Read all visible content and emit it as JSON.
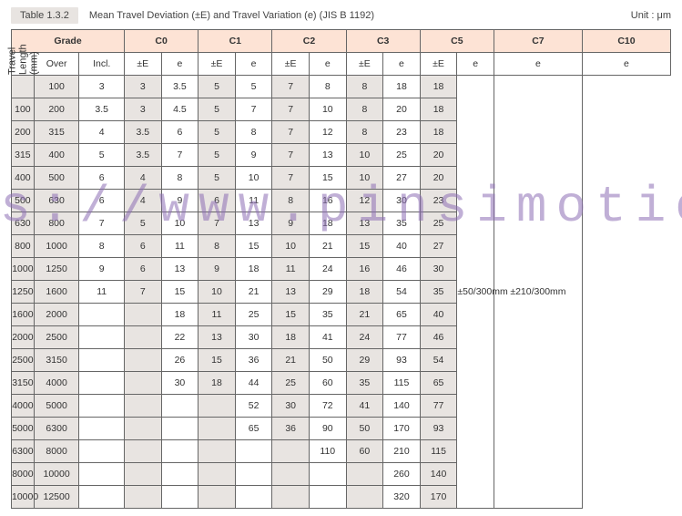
{
  "caption": {
    "tag": "Table 1.3.2",
    "title": "Mean Travel Deviation (±E) and Travel Variation (e) (JIS B 1192)",
    "unit": "Unit : μm"
  },
  "header": {
    "grade": "Grade",
    "c0": "C0",
    "c1": "C1",
    "c2": "C2",
    "c3": "C3",
    "c5": "C5",
    "c7": "C7",
    "c10": "C10",
    "over": "Over",
    "incl": "Incl.",
    "pe": "±E",
    "e": "e",
    "side": "Travel Length (mm)"
  },
  "c7val": "±50/300mm",
  "c10val": "±210/300mm",
  "rows": [
    {
      "over": "",
      "incl": "100",
      "c0e": "3",
      "c0v": "3",
      "c1e": "3.5",
      "c1v": "5",
      "c2e": "5",
      "c2v": "7",
      "c3e": "8",
      "c3v": "8",
      "c5e": "18",
      "c5v": "18"
    },
    {
      "over": "100",
      "incl": "200",
      "c0e": "3.5",
      "c0v": "3",
      "c1e": "4.5",
      "c1v": "5",
      "c2e": "7",
      "c2v": "7",
      "c3e": "10",
      "c3v": "8",
      "c5e": "20",
      "c5v": "18"
    },
    {
      "over": "200",
      "incl": "315",
      "c0e": "4",
      "c0v": "3.5",
      "c1e": "6",
      "c1v": "5",
      "c2e": "8",
      "c2v": "7",
      "c3e": "12",
      "c3v": "8",
      "c5e": "23",
      "c5v": "18"
    },
    {
      "over": "315",
      "incl": "400",
      "c0e": "5",
      "c0v": "3.5",
      "c1e": "7",
      "c1v": "5",
      "c2e": "9",
      "c2v": "7",
      "c3e": "13",
      "c3v": "10",
      "c5e": "25",
      "c5v": "20"
    },
    {
      "over": "400",
      "incl": "500",
      "c0e": "6",
      "c0v": "4",
      "c1e": "8",
      "c1v": "5",
      "c2e": "10",
      "c2v": "7",
      "c3e": "15",
      "c3v": "10",
      "c5e": "27",
      "c5v": "20"
    },
    {
      "over": "500",
      "incl": "630",
      "c0e": "6",
      "c0v": "4",
      "c1e": "9",
      "c1v": "6",
      "c2e": "11",
      "c2v": "8",
      "c3e": "16",
      "c3v": "12",
      "c5e": "30",
      "c5v": "23"
    },
    {
      "over": "630",
      "incl": "800",
      "c0e": "7",
      "c0v": "5",
      "c1e": "10",
      "c1v": "7",
      "c2e": "13",
      "c2v": "9",
      "c3e": "18",
      "c3v": "13",
      "c5e": "35",
      "c5v": "25"
    },
    {
      "over": "800",
      "incl": "1000",
      "c0e": "8",
      "c0v": "6",
      "c1e": "11",
      "c1v": "8",
      "c2e": "15",
      "c2v": "10",
      "c3e": "21",
      "c3v": "15",
      "c5e": "40",
      "c5v": "27"
    },
    {
      "over": "1000",
      "incl": "1250",
      "c0e": "9",
      "c0v": "6",
      "c1e": "13",
      "c1v": "9",
      "c2e": "18",
      "c2v": "11",
      "c3e": "24",
      "c3v": "16",
      "c5e": "46",
      "c5v": "30"
    },
    {
      "over": "1250",
      "incl": "1600",
      "c0e": "11",
      "c0v": "7",
      "c1e": "15",
      "c1v": "10",
      "c2e": "21",
      "c2v": "13",
      "c3e": "29",
      "c3v": "18",
      "c5e": "54",
      "c5v": "35"
    },
    {
      "over": "1600",
      "incl": "2000",
      "c0e": "",
      "c0v": "",
      "c1e": "18",
      "c1v": "11",
      "c2e": "25",
      "c2v": "15",
      "c3e": "35",
      "c3v": "21",
      "c5e": "65",
      "c5v": "40"
    },
    {
      "over": "2000",
      "incl": "2500",
      "c0e": "",
      "c0v": "",
      "c1e": "22",
      "c1v": "13",
      "c2e": "30",
      "c2v": "18",
      "c3e": "41",
      "c3v": "24",
      "c5e": "77",
      "c5v": "46"
    },
    {
      "over": "2500",
      "incl": "3150",
      "c0e": "",
      "c0v": "",
      "c1e": "26",
      "c1v": "15",
      "c2e": "36",
      "c2v": "21",
      "c3e": "50",
      "c3v": "29",
      "c5e": "93",
      "c5v": "54"
    },
    {
      "over": "3150",
      "incl": "4000",
      "c0e": "",
      "c0v": "",
      "c1e": "30",
      "c1v": "18",
      "c2e": "44",
      "c2v": "25",
      "c3e": "60",
      "c3v": "35",
      "c5e": "115",
      "c5v": "65"
    },
    {
      "over": "4000",
      "incl": "5000",
      "c0e": "",
      "c0v": "",
      "c1e": "",
      "c1v": "",
      "c2e": "52",
      "c2v": "30",
      "c3e": "72",
      "c3v": "41",
      "c5e": "140",
      "c5v": "77"
    },
    {
      "over": "5000",
      "incl": "6300",
      "c0e": "",
      "c0v": "",
      "c1e": "",
      "c1v": "",
      "c2e": "65",
      "c2v": "36",
      "c3e": "90",
      "c3v": "50",
      "c5e": "170",
      "c5v": "93"
    },
    {
      "over": "6300",
      "incl": "8000",
      "c0e": "",
      "c0v": "",
      "c1e": "",
      "c1v": "",
      "c2e": "",
      "c2v": "",
      "c3e": "110",
      "c3v": "60",
      "c5e": "210",
      "c5v": "115"
    },
    {
      "over": "8000",
      "incl": "10000",
      "c0e": "",
      "c0v": "",
      "c1e": "",
      "c1v": "",
      "c2e": "",
      "c2v": "",
      "c3e": "",
      "c3v": "",
      "c5e": "260",
      "c5v": "140"
    },
    {
      "over": "10000",
      "incl": "12500",
      "c0e": "",
      "c0v": "",
      "c1e": "",
      "c1v": "",
      "c2e": "",
      "c2v": "",
      "c3e": "",
      "c3v": "",
      "c5e": "320",
      "c5v": "170"
    }
  ],
  "watermark": "s://www.pinsimotion",
  "style": {
    "colwidths": {
      "side": 22,
      "range": 44,
      "val": 36,
      "c7": 86,
      "c10": 86
    }
  }
}
